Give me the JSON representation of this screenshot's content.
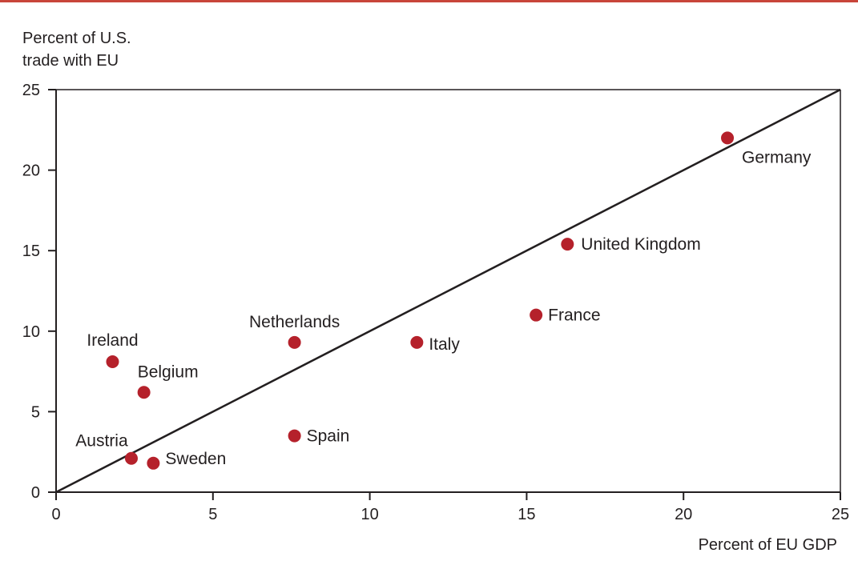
{
  "chart_data": {
    "type": "scatter",
    "ylabel_lines": [
      "Percent of U.S.",
      "trade with EU"
    ],
    "xlabel": "Percent of EU GDP",
    "xlim": [
      0,
      25
    ],
    "ylim": [
      0,
      25
    ],
    "x_ticks": [
      "0",
      "5",
      "10",
      "15",
      "20",
      "25"
    ],
    "y_ticks": [
      "0",
      "5",
      "10",
      "15",
      "20",
      "25"
    ],
    "grid": false,
    "reference_line": {
      "from": [
        0,
        0
      ],
      "to": [
        25,
        25
      ]
    },
    "point_color": "#b5212b",
    "accent_color": "#c8453a",
    "points": [
      {
        "label": "Germany",
        "x": 21.4,
        "y": 22.0
      },
      {
        "label": "United Kingdom",
        "x": 16.3,
        "y": 15.4
      },
      {
        "label": "France",
        "x": 15.3,
        "y": 11.0
      },
      {
        "label": "Italy",
        "x": 11.5,
        "y": 9.3
      },
      {
        "label": "Netherlands",
        "x": 7.6,
        "y": 9.3
      },
      {
        "label": "Spain",
        "x": 7.6,
        "y": 3.5
      },
      {
        "label": "Ireland",
        "x": 1.8,
        "y": 8.1
      },
      {
        "label": "Belgium",
        "x": 2.8,
        "y": 6.2
      },
      {
        "label": "Austria",
        "x": 2.4,
        "y": 2.1
      },
      {
        "label": "Sweden",
        "x": 3.1,
        "y": 1.8
      }
    ]
  }
}
